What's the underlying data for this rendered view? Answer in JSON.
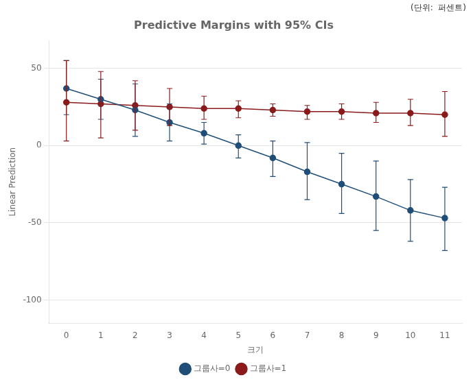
{
  "chart_data": {
    "type": "line",
    "title": "Predictive Margins with 95% CIs",
    "xlabel": "크기",
    "ylabel": "Linear Prediction",
    "annotations": [
      "(단위:  퍼센트)"
    ],
    "x": [
      0,
      1,
      2,
      3,
      4,
      5,
      6,
      7,
      8,
      9,
      10,
      11
    ],
    "xlim": [
      -0.5,
      11.5
    ],
    "xticks": [
      0,
      1,
      2,
      3,
      4,
      5,
      6,
      7,
      8,
      9,
      10,
      11
    ],
    "ylim": [
      -115,
      68
    ],
    "yticks": [
      -100,
      -50,
      0,
      50
    ],
    "grid": "y",
    "legend": "bottom",
    "series": [
      {
        "name": "그룹사=0",
        "color": "#1f4e79",
        "marker": "circle",
        "line_style": "solid",
        "values": [
          37,
          30,
          23,
          15,
          8,
          0,
          -8,
          -17,
          -25,
          -33,
          -42,
          -47
        ],
        "y_upper": [
          55,
          43,
          40,
          27,
          15,
          7,
          3,
          2,
          -5,
          -10,
          -22,
          -27
        ],
        "y_lower": [
          20,
          17,
          6,
          3,
          1,
          -8,
          -20,
          -35,
          -44,
          -55,
          -62,
          -68
        ]
      },
      {
        "name": "그룹사=1",
        "color": "#8b1a1a",
        "marker": "circle",
        "line_style": "solid",
        "values": [
          28,
          27,
          26,
          25,
          24,
          24,
          23,
          22,
          22,
          21,
          21,
          20
        ],
        "y_upper": [
          55,
          48,
          42,
          37,
          32,
          29,
          27,
          26,
          27,
          28,
          30,
          35
        ],
        "y_lower": [
          3,
          5,
          10,
          13,
          17,
          18,
          19,
          17,
          17,
          15,
          13,
          6
        ]
      }
    ]
  }
}
